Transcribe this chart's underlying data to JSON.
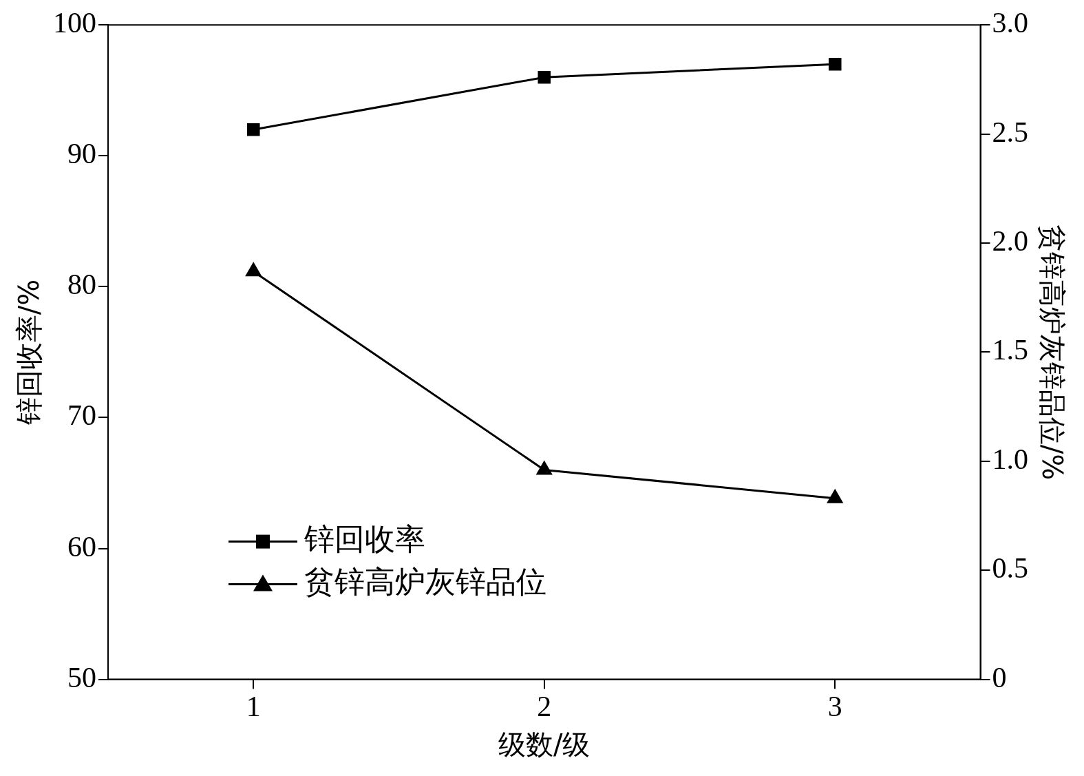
{
  "chart_data": {
    "type": "line",
    "xlabel": "级数/级",
    "ylabel": "锌回收率/%",
    "y2label": "贫锌高炉灰锌品位/%",
    "x": [
      1,
      2,
      3
    ],
    "xlim": [
      0.5,
      3.5
    ],
    "xticks": [
      1,
      2,
      3
    ],
    "ylim": [
      50,
      100
    ],
    "yticks": [
      50,
      60,
      70,
      80,
      90,
      100
    ],
    "y2lim": [
      0,
      3
    ],
    "y2ticks": [
      0,
      0.5,
      {
        "value": 1,
        "label": "1.0"
      },
      1.5,
      {
        "value": 2,
        "label": "2.0"
      },
      2.5,
      {
        "value": 3,
        "label": "3.0"
      }
    ],
    "series": [
      {
        "name": "锌回收率",
        "color": "#000000",
        "marker": "square",
        "values": [
          92,
          96,
          97
        ]
      },
      {
        "name": "贫锌高炉灰锌品位",
        "color": "#000000",
        "marker": "triangle",
        "axis": "y2",
        "values": [
          1.87,
          0.96,
          0.83
        ]
      }
    ],
    "grid": false,
    "legend": "bottom left",
    "line_style": "solid"
  }
}
